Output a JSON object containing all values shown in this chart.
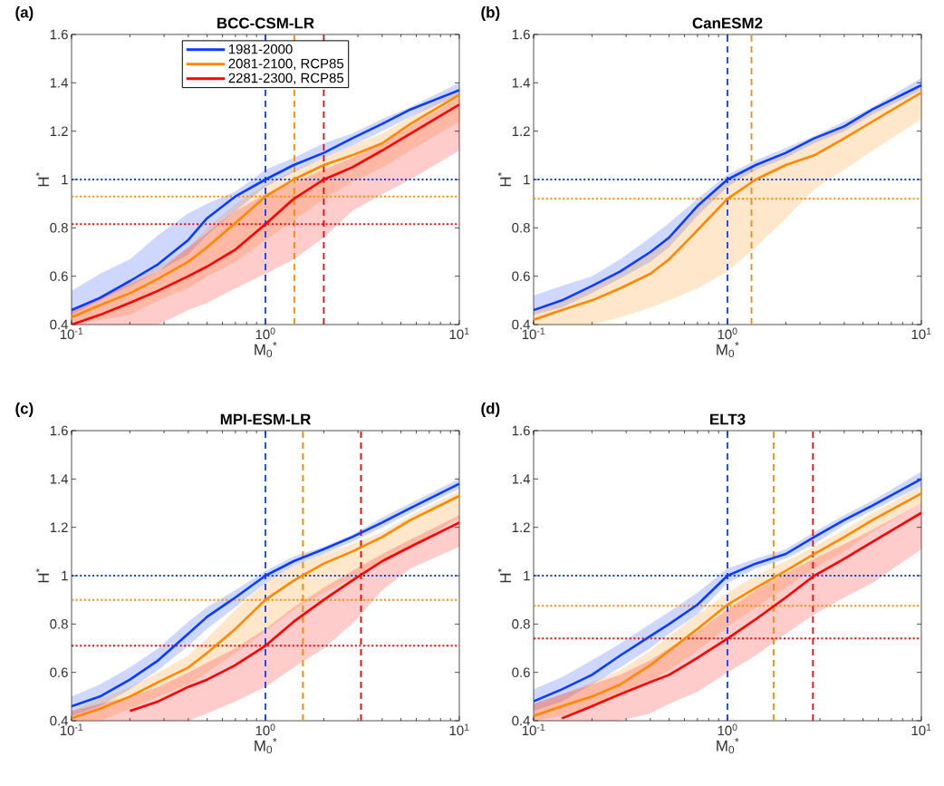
{
  "chart_data": [
    {
      "type": "line",
      "title": "BCC-CSM-LR",
      "xlabel": "M$_{0}$$^{*}$",
      "ylabel": "H$^{*}$",
      "annotations": [
        "(a)"
      ],
      "log": "x",
      "legend": "top",
      "xlim": [
        0.1,
        10
      ],
      "ylim": [
        0.4,
        1.6
      ],
      "xticks": [
        {
          "value": 0.1,
          "label": "10$^{-1}$"
        },
        {
          "value": 1,
          "label": "10$^{0}$"
        },
        {
          "value": 10,
          "label": "10$^{1}$"
        }
      ],
      "yticks": [
        0.4,
        0.6,
        0.8,
        1,
        1.2,
        1.4,
        1.6
      ],
      "x": [
        0.1,
        0.14,
        0.2,
        0.28,
        0.4,
        0.5,
        0.7,
        1,
        1.4,
        2,
        2.8,
        4,
        5.6,
        10
      ],
      "series": [
        {
          "name": "1981-2000",
          "color": "#0a3cff",
          "values": [
            0.46,
            0.51,
            0.58,
            0.65,
            0.75,
            0.84,
            0.93,
            1.0,
            1.06,
            1.11,
            1.17,
            1.23,
            1.29,
            1.37
          ],
          "upper": [
            0.54,
            0.61,
            0.67,
            0.77,
            0.86,
            0.9,
            0.95,
            1.04,
            1.09,
            1.15,
            1.19,
            1.25,
            1.3,
            1.4
          ],
          "lower": [
            0.44,
            0.5,
            0.56,
            0.62,
            0.69,
            0.77,
            0.87,
            0.97,
            1.03,
            1.09,
            1.14,
            1.2,
            1.26,
            1.35
          ]
        },
        {
          "name": "2081-2100, RCP85",
          "color": "#ff8800",
          "values": [
            0.43,
            0.48,
            0.53,
            0.59,
            0.66,
            0.72,
            0.82,
            0.93,
            1.0,
            1.06,
            1.1,
            1.15,
            1.23,
            1.35
          ],
          "upper": [
            0.46,
            0.52,
            0.58,
            0.64,
            0.72,
            0.8,
            0.9,
            0.98,
            1.04,
            1.09,
            1.14,
            1.19,
            1.26,
            1.38
          ],
          "lower": [
            0.4,
            0.42,
            0.44,
            0.5,
            0.55,
            0.6,
            0.66,
            0.75,
            0.83,
            0.92,
            0.99,
            1.05,
            1.12,
            1.24
          ]
        },
        {
          "name": "2281-2300, RCP85",
          "color": "#ff0000",
          "values": [
            0.4,
            0.44,
            0.49,
            0.54,
            0.6,
            0.64,
            0.71,
            0.815,
            0.92,
            1.0,
            1.05,
            1.12,
            1.19,
            1.31
          ],
          "upper": [
            0.46,
            null,
            null,
            0.62,
            0.72,
            0.78,
            0.87,
            0.94,
            0.99,
            1.04,
            1.09,
            1.15,
            1.22,
            1.34
          ],
          "lower": [
            0.4,
            null,
            null,
            0.4,
            0.46,
            0.49,
            0.55,
            0.61,
            0.67,
            0.76,
            0.87,
            0.94,
            1.0,
            1.12
          ]
        }
      ],
      "ref_lines": [
        {
          "axis": "x",
          "value": 1,
          "color": "#0a3cff",
          "line_style": "dashed"
        },
        {
          "axis": "x",
          "value": 1.41,
          "color": "#ff8800",
          "line_style": "dashed"
        },
        {
          "axis": "x",
          "value": 2.0,
          "color": "#ff0000",
          "line_style": "dashed"
        },
        {
          "axis": "y",
          "value": 1,
          "color": "#0a3cff",
          "line_style": "dotted"
        },
        {
          "axis": "y",
          "value": 0.93,
          "color": "#ff8800",
          "line_style": "dotted"
        },
        {
          "axis": "y",
          "value": 0.815,
          "color": "#ff0000",
          "line_style": "dotted"
        }
      ]
    },
    {
      "type": "line",
      "title": "CanESM2",
      "xlabel": "M$_{0}$$^{*}$",
      "ylabel": "H$^{*}$",
      "annotations": [
        "(b)"
      ],
      "log": "x",
      "xlim": [
        0.1,
        10
      ],
      "ylim": [
        0.4,
        1.6
      ],
      "xticks": [
        {
          "value": 0.1,
          "label": "10$^{-1}$"
        },
        {
          "value": 1,
          "label": "10$^{0}$"
        },
        {
          "value": 10,
          "label": "10$^{1}$"
        }
      ],
      "yticks": [
        0.4,
        0.6,
        0.8,
        1,
        1.2,
        1.4,
        1.6
      ],
      "x": [
        0.1,
        0.14,
        0.2,
        0.28,
        0.4,
        0.5,
        0.7,
        1,
        1.4,
        2,
        2.8,
        4,
        5.6,
        10
      ],
      "series": [
        {
          "color": "#0a3cff",
          "values": [
            0.46,
            0.5,
            0.56,
            0.62,
            0.7,
            0.76,
            0.89,
            1.0,
            1.06,
            1.11,
            1.17,
            1.22,
            1.29,
            1.39
          ],
          "upper": [
            0.52,
            0.56,
            0.6,
            0.67,
            0.76,
            0.82,
            0.92,
            1.02,
            1.08,
            1.13,
            1.18,
            1.24,
            1.3,
            1.42
          ],
          "lower": [
            0.44,
            0.47,
            0.53,
            0.59,
            0.66,
            0.72,
            0.85,
            0.97,
            1.04,
            1.09,
            1.15,
            1.2,
            1.27,
            1.37
          ]
        },
        {
          "color": "#ff8800",
          "values": [
            0.42,
            0.46,
            0.5,
            0.55,
            0.61,
            0.67,
            0.79,
            0.92,
            1.0,
            1.06,
            1.1,
            1.17,
            1.24,
            1.36
          ],
          "upper": [
            0.46,
            null,
            0.56,
            0.62,
            0.7,
            0.76,
            0.88,
            0.99,
            1.05,
            1.1,
            1.16,
            1.22,
            1.28,
            1.38
          ],
          "lower": [
            0.4,
            null,
            0.4,
            0.43,
            0.47,
            0.5,
            0.55,
            0.62,
            0.72,
            0.84,
            0.96,
            1.04,
            1.12,
            1.25
          ]
        }
      ],
      "ref_lines": [
        {
          "axis": "x",
          "value": 1,
          "color": "#0a3cff",
          "line_style": "dashed"
        },
        {
          "axis": "x",
          "value": 1.33,
          "color": "#ff8800",
          "line_style": "dashed"
        },
        {
          "axis": "y",
          "value": 1,
          "color": "#0a3cff",
          "line_style": "dotted"
        },
        {
          "axis": "y",
          "value": 0.92,
          "color": "#ff8800",
          "line_style": "dotted"
        }
      ]
    },
    {
      "type": "line",
      "title": "MPI-ESM-LR",
      "xlabel": "M$_{0}$$^{*}$",
      "ylabel": "H$^{*}$",
      "annotations": [
        "(c)"
      ],
      "log": "x",
      "xlim": [
        0.1,
        10
      ],
      "ylim": [
        0.4,
        1.6
      ],
      "xticks": [
        {
          "value": 0.1,
          "label": "10$^{-1}$"
        },
        {
          "value": 1,
          "label": "10$^{0}$"
        },
        {
          "value": 10,
          "label": "10$^{1}$"
        }
      ],
      "yticks": [
        0.4,
        0.6,
        0.8,
        1,
        1.2,
        1.4,
        1.6
      ],
      "x": [
        0.1,
        0.14,
        0.2,
        0.28,
        0.4,
        0.5,
        0.7,
        1,
        1.4,
        2,
        2.8,
        4,
        5.6,
        10
      ],
      "series": [
        {
          "color": "#0a3cff",
          "values": [
            0.46,
            0.5,
            0.57,
            0.65,
            0.76,
            0.83,
            0.91,
            1.0,
            1.06,
            1.11,
            1.16,
            1.22,
            1.28,
            1.38
          ],
          "upper": [
            0.5,
            0.55,
            0.62,
            0.7,
            0.81,
            0.87,
            0.94,
            1.02,
            1.08,
            1.12,
            1.17,
            1.24,
            1.3,
            1.4
          ],
          "lower": [
            0.42,
            0.46,
            0.53,
            0.61,
            0.71,
            0.78,
            0.87,
            0.97,
            1.04,
            1.09,
            1.14,
            1.2,
            1.26,
            1.36
          ]
        },
        {
          "color": "#ff8800",
          "values": [
            0.41,
            0.45,
            0.5,
            0.56,
            0.62,
            0.68,
            0.78,
            0.9,
            0.98,
            1.05,
            1.1,
            1.16,
            1.23,
            1.33
          ],
          "upper": [
            0.44,
            0.49,
            0.54,
            0.6,
            0.67,
            0.74,
            0.86,
            0.97,
            1.04,
            1.09,
            1.13,
            1.18,
            1.25,
            1.35
          ],
          "lower": [
            0.4,
            0.4,
            0.45,
            0.5,
            0.55,
            0.6,
            0.68,
            0.77,
            0.86,
            0.93,
            0.99,
            1.05,
            1.12,
            1.24
          ]
        },
        {
          "color": "#ff0000",
          "values": [
            null,
            null,
            0.44,
            0.48,
            0.54,
            0.57,
            0.63,
            0.71,
            0.81,
            0.9,
            0.98,
            1.06,
            1.12,
            1.22
          ],
          "upper": [
            0.44,
            0.47,
            0.5,
            0.54,
            0.6,
            0.64,
            0.7,
            0.78,
            0.87,
            0.95,
            1.02,
            1.09,
            1.15,
            1.25
          ],
          "lower": [
            0.4,
            0.4,
            0.4,
            0.4,
            0.4,
            0.43,
            0.48,
            0.54,
            0.62,
            0.7,
            0.8,
            0.94,
            1.03,
            1.12
          ]
        }
      ],
      "ref_lines": [
        {
          "axis": "x",
          "value": 1,
          "color": "#0a3cff",
          "line_style": "dashed"
        },
        {
          "axis": "x",
          "value": 1.56,
          "color": "#ff8800",
          "line_style": "dashed"
        },
        {
          "axis": "x",
          "value": 3.11,
          "color": "#ff0000",
          "line_style": "dashed"
        },
        {
          "axis": "y",
          "value": 1,
          "color": "#0a3cff",
          "line_style": "dotted"
        },
        {
          "axis": "y",
          "value": 0.9,
          "color": "#ff8800",
          "line_style": "dotted"
        },
        {
          "axis": "y",
          "value": 0.71,
          "color": "#ff0000",
          "line_style": "dotted"
        }
      ]
    },
    {
      "type": "line",
      "title": "ELT3",
      "xlabel": "M$_{0}$$^{*}$",
      "ylabel": "H$^{*}$",
      "annotations": [
        "(d)"
      ],
      "log": "x",
      "xlim": [
        0.1,
        10
      ],
      "ylim": [
        0.4,
        1.6
      ],
      "xticks": [
        {
          "value": 0.1,
          "label": "10$^{-1}$"
        },
        {
          "value": 1,
          "label": "10$^{0}$"
        },
        {
          "value": 10,
          "label": "10$^{1}$"
        }
      ],
      "yticks": [
        0.4,
        0.6,
        0.8,
        1,
        1.2,
        1.4,
        1.6
      ],
      "x": [
        0.1,
        0.14,
        0.2,
        0.28,
        0.4,
        0.5,
        0.7,
        1,
        1.4,
        2,
        2.8,
        4,
        5.6,
        10
      ],
      "series": [
        {
          "color": "#0a3cff",
          "values": [
            0.48,
            0.53,
            0.59,
            0.67,
            0.75,
            0.8,
            0.88,
            1.0,
            1.05,
            1.09,
            1.16,
            1.23,
            1.29,
            1.4
          ],
          "upper": [
            0.53,
            0.58,
            0.65,
            0.72,
            0.8,
            0.85,
            0.93,
            1.03,
            1.07,
            1.11,
            1.18,
            1.25,
            1.31,
            1.43
          ],
          "lower": [
            0.44,
            0.48,
            0.55,
            0.62,
            0.7,
            0.76,
            0.84,
            0.97,
            1.03,
            1.07,
            1.13,
            1.21,
            1.27,
            1.37
          ]
        },
        {
          "color": "#ff8800",
          "values": [
            0.42,
            0.46,
            0.5,
            0.55,
            0.63,
            0.69,
            0.78,
            0.88,
            0.95,
            1.02,
            1.09,
            1.16,
            1.23,
            1.34
          ],
          "upper": [
            0.47,
            0.51,
            0.56,
            0.61,
            0.69,
            0.75,
            0.84,
            0.93,
            1.0,
            1.06,
            1.12,
            1.19,
            1.26,
            1.37
          ],
          "lower": [
            0.4,
            0.42,
            0.46,
            0.5,
            0.56,
            0.61,
            0.69,
            0.79,
            0.87,
            0.95,
            1.03,
            1.1,
            1.18,
            1.3
          ]
        },
        {
          "color": "#ff0000",
          "values": [
            null,
            0.41,
            0.46,
            0.51,
            0.56,
            0.59,
            0.66,
            0.74,
            0.82,
            0.91,
            1.0,
            1.07,
            1.14,
            1.26
          ],
          "upper": [
            0.47,
            null,
            null,
            0.59,
            0.65,
            0.7,
            0.77,
            0.86,
            0.94,
            1.01,
            1.07,
            1.13,
            1.19,
            1.3
          ],
          "lower": [
            0.4,
            null,
            null,
            0.4,
            0.43,
            0.47,
            0.52,
            0.6,
            0.67,
            0.76,
            0.84,
            0.91,
            0.97,
            1.11
          ]
        }
      ],
      "ref_lines": [
        {
          "axis": "x",
          "value": 1,
          "color": "#0a3cff",
          "line_style": "dashed"
        },
        {
          "axis": "x",
          "value": 1.73,
          "color": "#ff8800",
          "line_style": "dashed"
        },
        {
          "axis": "x",
          "value": 2.76,
          "color": "#ff0000",
          "line_style": "dashed"
        },
        {
          "axis": "y",
          "value": 1,
          "color": "#0a3cff",
          "line_style": "dotted"
        },
        {
          "axis": "y",
          "value": 0.875,
          "color": "#ff8800",
          "line_style": "dotted"
        },
        {
          "axis": "y",
          "value": 0.74,
          "color": "#ff0000",
          "line_style": "dotted"
        }
      ]
    }
  ]
}
